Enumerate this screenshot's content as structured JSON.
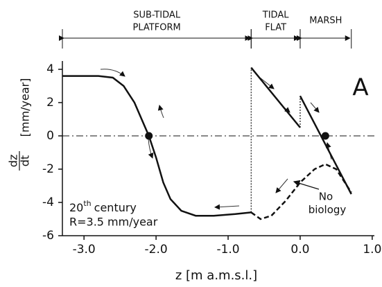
{
  "chart_data": {
    "type": "line",
    "panel_label": "A",
    "xlabel": "z [m a.m.s.l.]",
    "ylabel_fraction": [
      "dz",
      "dt"
    ],
    "ylabel_unit": "[mm/year]",
    "xlim": [
      -3.3,
      1.03
    ],
    "ylim": [
      -6,
      4.5
    ],
    "xticks": [
      {
        "value": -3,
        "label": "-3.0"
      },
      {
        "value": -2,
        "label": "-2.0"
      },
      {
        "value": -1,
        "label": "-1.0"
      },
      {
        "value": 0,
        "label": "0.0"
      },
      {
        "value": 1,
        "label": "1.0"
      }
    ],
    "yticks": [
      -6,
      -4,
      -2,
      0,
      2,
      4
    ],
    "hline": 0,
    "zones": [
      {
        "lines": [
          "SUB-TIDAL",
          "PLATFORM"
        ],
        "range": [
          -3.3,
          -0.68
        ]
      },
      {
        "lines": [
          "TIDAL",
          "FLAT"
        ],
        "range": [
          -0.68,
          0
        ]
      },
      {
        "lines": [
          "MARSH"
        ],
        "range": [
          0,
          0.71
        ]
      }
    ],
    "series": [
      {
        "style": "solid",
        "color": "#111111",
        "x": [
          -3.3,
          -2.8,
          -2.6,
          -2.45,
          -2.3,
          -2.2,
          -2.1,
          -2.0,
          -1.9,
          -1.8,
          -1.65,
          -1.45,
          -1.2,
          -0.9,
          -0.68
        ],
        "values": [
          3.6,
          3.6,
          3.5,
          3.0,
          2.0,
          1.0,
          0,
          -1.3,
          -2.8,
          -3.8,
          -4.5,
          -4.8,
          -4.8,
          -4.7,
          -4.6
        ]
      },
      {
        "style": "dotted",
        "color": "#111111",
        "x": [
          -0.68,
          -0.68
        ],
        "values": [
          -4.6,
          4.1
        ]
      },
      {
        "style": "solid",
        "color": "#111111",
        "x": [
          -0.68,
          0.0
        ],
        "values": [
          4.1,
          0.5
        ]
      },
      {
        "style": "dotted",
        "color": "#111111",
        "x": [
          0.0,
          0.0
        ],
        "values": [
          0.5,
          2.4
        ]
      },
      {
        "style": "solid",
        "color": "#111111",
        "x": [
          0.0,
          0.71
        ],
        "values": [
          2.4,
          -3.5
        ]
      },
      {
        "style": "dashed",
        "color": "#111111",
        "x": [
          -0.68,
          -0.55,
          -0.4,
          -0.2,
          0.0,
          0.2,
          0.35,
          0.5,
          0.71
        ],
        "values": [
          -4.6,
          -5.0,
          -4.8,
          -3.9,
          -2.8,
          -2.0,
          -1.7,
          -2.0,
          -3.4
        ]
      }
    ],
    "equilibria": {
      "x": [
        -2.1,
        0.35
      ],
      "values": [
        0,
        0
      ]
    },
    "annotation_era": {
      "base": "20",
      "sup": "th",
      "rest": "century"
    },
    "annotation_rate": "R=3.5 mm/year",
    "annotation_nobio": [
      "No",
      "biology"
    ]
  }
}
